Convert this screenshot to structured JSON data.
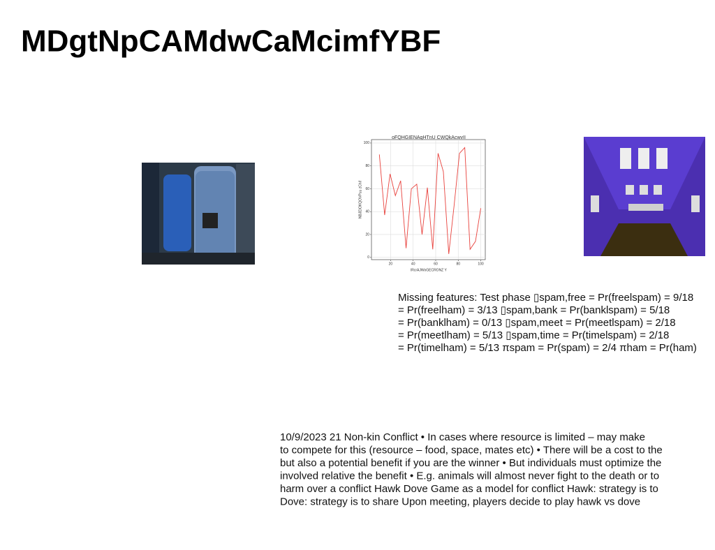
{
  "header": {
    "title": "MDgtNpCAMdwCaMcimfYBF"
  },
  "chart_data": {
    "type": "line",
    "title": "oFQHGIENAqHTnU CWQkAcwvII",
    "xlabel": "lRcrAJWoGECRONZ Y",
    "ylabel": "NBJEIOKQOVPuu zChif",
    "x": [
      10,
      14.7,
      19.5,
      24.2,
      28.9,
      33.7,
      38.4,
      43.2,
      47.9,
      52.6,
      57.4,
      62.1,
      66.8,
      71.6,
      76.3,
      81.1,
      85.8,
      90.5,
      95.3,
      100
    ],
    "series": [
      {
        "name": null,
        "color": "#e8413c",
        "values": [
          90,
          37,
          73,
          54,
          67,
          8,
          60,
          64,
          20,
          61,
          7,
          91,
          75,
          3,
          45,
          91,
          96,
          7,
          14,
          43
        ]
      }
    ],
    "xlim": [
      3,
      104
    ],
    "ylim": [
      -2,
      103
    ],
    "xticks": [
      20,
      40,
      60,
      80,
      100
    ],
    "yticks": [
      0,
      20,
      40,
      60,
      80,
      100
    ],
    "grid": true
  },
  "text_blocks": [
    {
      "lines": [
        "Missing features: Test phase ▯spam,free = Pr(freelspam) = 9/18",
        "= Pr(freelham) = 3/13 ▯spam,bank = Pr(banklspam) = 5/18",
        "= Pr(banklham) = 0/13 ▯spam,meet = Pr(meetlspam) = 2/18",
        "= Pr(meetlham) = 5/13 ▯spam,time = Pr(timelspam) = 2/18",
        "= Pr(timelham) = 5/13 πspam = Pr(spam) = 2/4 πham = Pr(ham)"
      ]
    },
    {
      "lines": [
        "10/9/2023 21 Non-kin Conflict • In cases where resource is limited – may make",
        "to compete for this (resource – food, space, mates etc) • There will be a cost to the",
        "but also a potential benefit if you are the winner • But individuals must optimize the",
        "involved relative the benefit • E.g. animals will almost never fight to the death or to",
        "harm over a conflict Hawk Dove Game as a model for conflict Hawk: strategy is to",
        "Dove: strategy is to share Upon meeting, players decide to play hawk vs dove"
      ]
    }
  ]
}
